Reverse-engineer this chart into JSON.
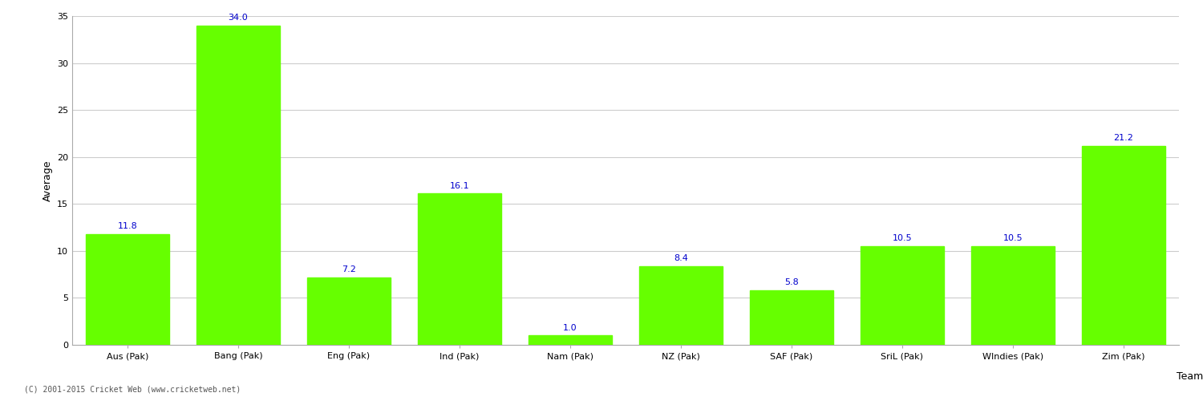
{
  "categories": [
    "Aus (Pak)",
    "Bang (Pak)",
    "Eng (Pak)",
    "Ind (Pak)",
    "Nam (Pak)",
    "NZ (Pak)",
    "SAF (Pak)",
    "SriL (Pak)",
    "WIndies (Pak)",
    "Zim (Pak)"
  ],
  "values": [
    11.8,
    34.0,
    7.2,
    16.1,
    1.0,
    8.4,
    5.8,
    10.5,
    10.5,
    21.2
  ],
  "bar_color": "#66ff00",
  "label_color": "#0000cc",
  "xlabel": "Team",
  "ylabel": "Average",
  "ylim": [
    0,
    35
  ],
  "yticks": [
    0,
    5,
    10,
    15,
    20,
    25,
    30,
    35
  ],
  "grid_color": "#cccccc",
  "background_color": "#ffffff",
  "footer": "(C) 2001-2015 Cricket Web (www.cricketweb.net)",
  "bar_label_fontsize": 8,
  "axis_label_fontsize": 9,
  "tick_fontsize": 8,
  "footer_fontsize": 7
}
